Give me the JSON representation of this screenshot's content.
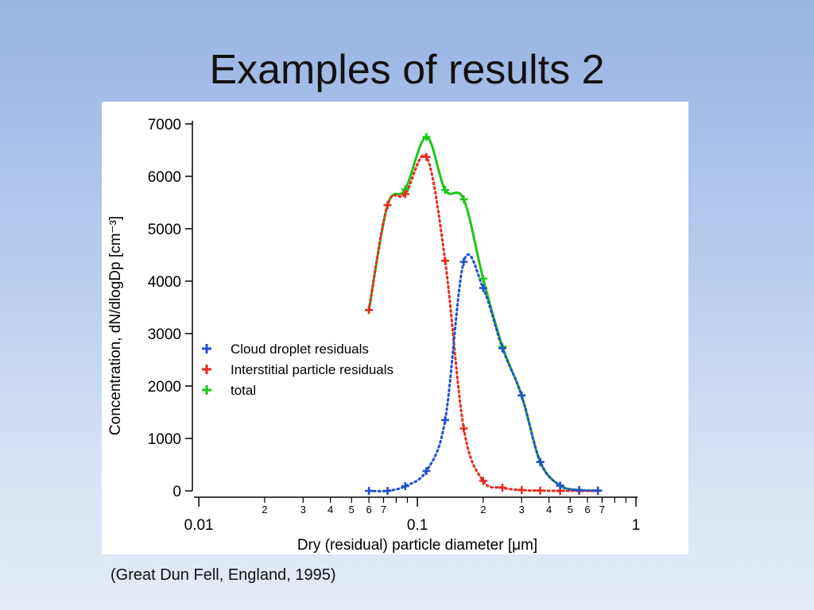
{
  "slide": {
    "title": "Examples of results 2",
    "caption": "(Great Dun Fell, England, 1995)"
  },
  "chart_data": {
    "type": "line",
    "xlabel": "Dry (residual) particle diameter [μm]",
    "ylabel": "Concentration, dN/dlogDp [cm⁻³]",
    "x_scale": "log",
    "xlim": [
      0.0095,
      1.0
    ],
    "ylim": [
      0,
      7000
    ],
    "y_ticks": [
      0,
      1000,
      2000,
      3000,
      4000,
      5000,
      6000,
      7000
    ],
    "x_major_ticks": [
      {
        "value": 0.01,
        "label": "0.01"
      },
      {
        "value": 0.1,
        "label": "0.1"
      },
      {
        "value": 1,
        "label": "1"
      }
    ],
    "x_minor_ticks": [
      {
        "value": 0.02,
        "label": "2"
      },
      {
        "value": 0.03,
        "label": "3"
      },
      {
        "value": 0.04,
        "label": "4"
      },
      {
        "value": 0.05,
        "label": "5"
      },
      {
        "value": 0.06,
        "label": "6"
      },
      {
        "value": 0.07,
        "label": "7"
      },
      {
        "value": 0.08,
        "label": ""
      },
      {
        "value": 0.09,
        "label": ""
      },
      {
        "value": 0.2,
        "label": "2"
      },
      {
        "value": 0.3,
        "label": "3"
      },
      {
        "value": 0.4,
        "label": "4"
      },
      {
        "value": 0.5,
        "label": "5"
      },
      {
        "value": 0.6,
        "label": "6"
      },
      {
        "value": 0.7,
        "label": "7"
      },
      {
        "value": 0.8,
        "label": ""
      },
      {
        "value": 0.9,
        "label": ""
      }
    ],
    "legend_position": "center-left",
    "series": [
      {
        "name": "Cloud droplet residuals",
        "color": "#1f4fcf",
        "line": "dotted",
        "x": [
          0.06,
          0.073,
          0.088,
          0.11,
          0.134,
          0.163,
          0.2,
          0.245,
          0.3,
          0.365,
          0.45,
          0.55,
          0.67
        ],
        "y": [
          0,
          0,
          90,
          380,
          1350,
          4370,
          3870,
          2720,
          1820,
          550,
          100,
          15,
          5
        ]
      },
      {
        "name": "Interstitial particle residuals",
        "color": "#e62a1f",
        "line": "dotted",
        "x": [
          0.06,
          0.073,
          0.088,
          0.11,
          0.134,
          0.163,
          0.2,
          0.245,
          0.3,
          0.365,
          0.45,
          0.55,
          0.67
        ],
        "y": [
          3450,
          5450,
          5660,
          6370,
          4390,
          1190,
          190,
          60,
          15,
          5,
          0,
          0,
          0
        ]
      },
      {
        "name": "total",
        "color": "#1ec418",
        "line": "solid",
        "x": [
          0.06,
          0.073,
          0.088,
          0.11,
          0.134,
          0.163,
          0.2,
          0.245,
          0.3,
          0.365,
          0.45,
          0.55,
          0.67
        ],
        "y": [
          3450,
          5450,
          5750,
          6750,
          5740,
          5560,
          4050,
          2750,
          1820,
          550,
          100,
          15,
          5
        ]
      }
    ]
  }
}
